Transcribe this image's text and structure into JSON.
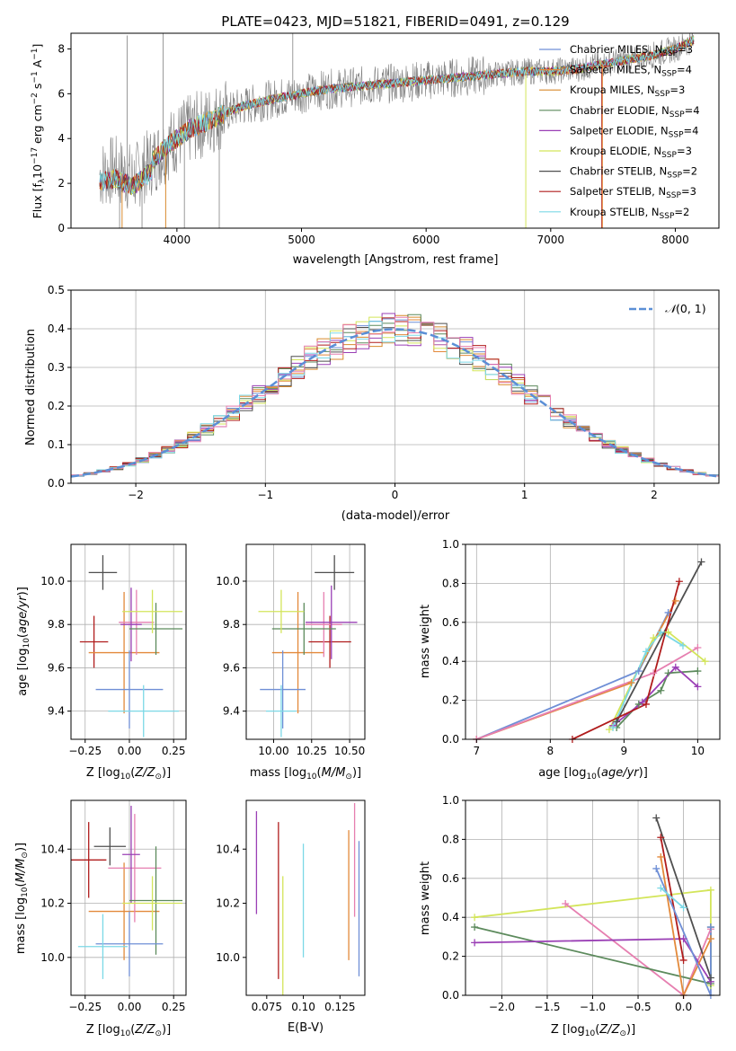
{
  "figure": {
    "title": "PLATE=0423, MJD=51821, FIBERID=0491, z=0.129"
  },
  "colors": {
    "chabrier_miles": "#6f8fd6",
    "salpeter_miles": "#e3893a",
    "kroupa_miles": "#d88a2c",
    "chabrier_elodie": "#5c8a5c",
    "salpeter_elodie": "#9a3fb5",
    "kroupa_elodie": "#d3e55a",
    "chabrier_stelib": "#4f4f4f",
    "salpeter_stelib": "#b01c1c",
    "kroupa_stelib": "#7bd8e6",
    "spectrum": "#808080",
    "gaussian": "#5b8fd6",
    "pink": "#e67fb0",
    "grid": "#b0b0b0"
  },
  "chart_data": [
    {
      "id": "spectrum",
      "type": "line",
      "xlabel": "wavelength [Angstrom, rest frame]",
      "ylabel": "Flux [f_λ10^-17 erg cm^-2 s^-1 A^-1]",
      "xlim": [
        3150,
        8350
      ],
      "ylim": [
        0,
        8.7
      ],
      "xticks": [
        4000,
        5000,
        6000,
        7000,
        8000
      ],
      "yticks": [
        0,
        2,
        4,
        6,
        8
      ],
      "grid": false,
      "legend_position": "right",
      "legend": [
        {
          "label": "Chabrier MILES, N_SSP=3",
          "color": "#6f8fd6"
        },
        {
          "label": "Salpeter MILES, N_SSP=4",
          "color": "#e3893a"
        },
        {
          "label": "Kroupa MILES, N_SSP=3",
          "color": "#d88a2c"
        },
        {
          "label": "Chabrier ELODIE, N_SSP=4",
          "color": "#5c8a5c"
        },
        {
          "label": "Salpeter ELODIE, N_SSP=4",
          "color": "#9a3fb5"
        },
        {
          "label": "Kroupa ELODIE, N_SSP=3",
          "color": "#d3e55a"
        },
        {
          "label": "Chabrier STELIB, N_SSP=2",
          "color": "#4f4f4f"
        },
        {
          "label": "Salpeter STELIB, N_SSP=3",
          "color": "#b01c1c"
        },
        {
          "label": "Kroupa STELIB, N_SSP=2",
          "color": "#7bd8e6"
        }
      ],
      "continuum_x": [
        3380,
        3500,
        3650,
        3800,
        3950,
        4100,
        4300,
        4500,
        4800,
        5000,
        5200,
        5400,
        5600,
        5800,
        6000,
        6200,
        6400,
        6600,
        6800,
        7000,
        7200,
        7400,
        7600,
        7800,
        8000,
        8150
      ],
      "continuum_y": [
        2.4,
        2.6,
        2.2,
        3.0,
        3.8,
        4.4,
        4.9,
        5.4,
        5.8,
        6.0,
        6.2,
        6.3,
        6.4,
        6.5,
        6.6,
        6.7,
        6.8,
        6.9,
        7.0,
        7.0,
        7.1,
        7.3,
        7.5,
        7.7,
        8.0,
        8.4
      ]
    },
    {
      "id": "residuals",
      "type": "line",
      "xlabel": "(data-model)/error",
      "ylabel": "Normed distribution",
      "xlim": [
        -2.5,
        2.5
      ],
      "ylim": [
        0,
        0.5
      ],
      "xticks": [
        -2,
        -1,
        0,
        1,
        2
      ],
      "yticks": [
        0.0,
        0.1,
        0.2,
        0.3,
        0.4,
        0.5
      ],
      "grid": true,
      "legend_position": "top-right",
      "legend": [
        {
          "label": "N(0, 1)",
          "color": "#5b8fd6"
        }
      ]
    },
    {
      "id": "age_vs_Z",
      "type": "scatter",
      "xlabel": "Z [log10(Z/Z☉)]",
      "ylabel": "age [log10(age/yr)]",
      "xlim": [
        -0.33,
        0.32
      ],
      "ylim": [
        9.27,
        10.17
      ],
      "xticks": [
        -0.25,
        0.0,
        0.25
      ],
      "yticks": [
        9.4,
        9.6,
        9.8,
        10.0
      ],
      "grid": true,
      "points": [
        {
          "x": -0.15,
          "y": 10.04,
          "xerr": 0.08,
          "yerr": 0.08,
          "color": "#4f4f4f"
        },
        {
          "x": -0.2,
          "y": 9.72,
          "xerr": 0.08,
          "yerr": 0.12,
          "color": "#b01c1c"
        },
        {
          "x": -0.03,
          "y": 9.67,
          "xerr": 0.2,
          "yerr": 0.28,
          "color": "#e3893a"
        },
        {
          "x": 0.04,
          "y": 9.81,
          "xerr": 0.1,
          "yerr": 0.15,
          "color": "#e67fb0"
        },
        {
          "x": 0.01,
          "y": 9.8,
          "xerr": 0.06,
          "yerr": 0.17,
          "color": "#9a3fb5"
        },
        {
          "x": 0.15,
          "y": 9.78,
          "xerr": 0.15,
          "yerr": 0.12,
          "color": "#5c8a5c"
        },
        {
          "x": 0.13,
          "y": 9.86,
          "xerr": 0.17,
          "yerr": 0.1,
          "color": "#d3e55a"
        },
        {
          "x": 0.0,
          "y": 9.5,
          "xerr": 0.19,
          "yerr": 0.18,
          "color": "#6f8fd6"
        },
        {
          "x": 0.08,
          "y": 9.4,
          "xerr": 0.2,
          "yerr": 0.12,
          "color": "#7bd8e6"
        }
      ]
    },
    {
      "id": "age_vs_mass",
      "type": "scatter",
      "xlabel": "mass [log10(M/M☉)]",
      "ylabel": "",
      "xlim": [
        9.82,
        10.6
      ],
      "ylim": [
        9.27,
        10.17
      ],
      "xticks": [
        10.0,
        10.25,
        10.5
      ],
      "yticks": [
        9.4,
        9.6,
        9.8,
        10.0
      ],
      "grid": true,
      "points": [
        {
          "x": 10.4,
          "y": 10.04,
          "xerr": 0.13,
          "yerr": 0.08,
          "color": "#4f4f4f"
        },
        {
          "x": 10.37,
          "y": 9.72,
          "xerr": 0.14,
          "yerr": 0.12,
          "color": "#b01c1c"
        },
        {
          "x": 10.16,
          "y": 9.67,
          "xerr": 0.17,
          "yerr": 0.28,
          "color": "#e3893a"
        },
        {
          "x": 10.33,
          "y": 9.8,
          "xerr": 0.12,
          "yerr": 0.15,
          "color": "#e67fb0"
        },
        {
          "x": 10.38,
          "y": 9.81,
          "xerr": 0.17,
          "yerr": 0.17,
          "color": "#9a3fb5"
        },
        {
          "x": 10.2,
          "y": 9.78,
          "xerr": 0.21,
          "yerr": 0.12,
          "color": "#5c8a5c"
        },
        {
          "x": 10.05,
          "y": 9.86,
          "xerr": 0.15,
          "yerr": 0.1,
          "color": "#d3e55a"
        },
        {
          "x": 10.06,
          "y": 9.5,
          "xerr": 0.15,
          "yerr": 0.18,
          "color": "#6f8fd6"
        },
        {
          "x": 10.05,
          "y": 9.4,
          "xerr": 0.1,
          "yerr": 0.12,
          "color": "#7bd8e6"
        }
      ]
    },
    {
      "id": "weight_vs_age",
      "type": "line",
      "xlabel": "age [log10(age/yr)]",
      "ylabel": "mass weight",
      "xlim": [
        6.85,
        10.3
      ],
      "ylim": [
        0,
        1.0
      ],
      "xticks": [
        7,
        8,
        9,
        10
      ],
      "yticks": [
        0.0,
        0.2,
        0.4,
        0.6,
        0.8,
        1.0
      ],
      "grid": true,
      "series": [
        {
          "color": "#6f8fd6",
          "x": [
            7.0,
            9.2,
            9.6
          ],
          "y": [
            0.0,
            0.35,
            0.65
          ]
        },
        {
          "color": "#e3893a",
          "x": [
            7.0,
            9.1,
            9.7
          ],
          "y": [
            0.0,
            0.29,
            0.71
          ]
        },
        {
          "color": "#e67fb0",
          "x": [
            7.0,
            9.4,
            10.0
          ],
          "y": [
            0.0,
            0.34,
            0.47
          ]
        },
        {
          "color": "#5c8a5c",
          "x": [
            8.9,
            9.2,
            9.5,
            9.6,
            10.0
          ],
          "y": [
            0.06,
            0.18,
            0.25,
            0.34,
            0.35
          ]
        },
        {
          "color": "#9a3fb5",
          "x": [
            8.85,
            9.25,
            9.7,
            10.0
          ],
          "y": [
            0.07,
            0.19,
            0.37,
            0.27
          ]
        },
        {
          "color": "#d3e55a",
          "x": [
            8.8,
            9.4,
            9.6,
            10.1
          ],
          "y": [
            0.05,
            0.52,
            0.55,
            0.4
          ]
        },
        {
          "color": "#7bd8e6",
          "x": [
            8.85,
            9.3,
            9.5,
            9.8
          ],
          "y": [
            0.06,
            0.45,
            0.55,
            0.48
          ]
        },
        {
          "color": "#4f4f4f",
          "x": [
            8.9,
            10.05
          ],
          "y": [
            0.09,
            0.91
          ]
        },
        {
          "color": "#b01c1c",
          "x": [
            8.3,
            9.3,
            9.75
          ],
          "y": [
            0.0,
            0.18,
            0.81
          ]
        }
      ]
    },
    {
      "id": "mass_vs_Z",
      "type": "scatter",
      "xlabel": "Z [log10(Z/Z☉)]",
      "ylabel": "mass [log10(M/M☉)]",
      "xlim": [
        -0.33,
        0.32
      ],
      "ylim": [
        9.86,
        10.58
      ],
      "xticks": [
        -0.25,
        0.0,
        0.25
      ],
      "yticks": [
        10.0,
        10.2,
        10.4
      ],
      "grid": true,
      "points": [
        {
          "x": -0.11,
          "y": 10.41,
          "xerr": 0.09,
          "yerr": 0.07,
          "color": "#4f4f4f"
        },
        {
          "x": -0.23,
          "y": 10.36,
          "xerr": 0.1,
          "yerr": 0.14,
          "color": "#b01c1c"
        },
        {
          "x": -0.03,
          "y": 10.17,
          "xerr": 0.2,
          "yerr": 0.18,
          "color": "#e3893a"
        },
        {
          "x": 0.03,
          "y": 10.33,
          "xerr": 0.15,
          "yerr": 0.2,
          "color": "#e67fb0"
        },
        {
          "x": 0.01,
          "y": 10.38,
          "xerr": 0.05,
          "yerr": 0.18,
          "color": "#9a3fb5"
        },
        {
          "x": 0.15,
          "y": 10.21,
          "xerr": 0.15,
          "yerr": 0.2,
          "color": "#5c8a5c"
        },
        {
          "x": 0.13,
          "y": 10.2,
          "xerr": 0.17,
          "yerr": 0.1,
          "color": "#d3e55a"
        },
        {
          "x": 0.0,
          "y": 10.05,
          "xerr": 0.19,
          "yerr": 0.12,
          "color": "#6f8fd6"
        },
        {
          "x": -0.15,
          "y": 10.04,
          "xerr": 0.14,
          "yerr": 0.12,
          "color": "#7bd8e6"
        }
      ]
    },
    {
      "id": "mass_vs_EBV",
      "type": "scatter",
      "xlabel": "E(B-V)",
      "ylabel": "",
      "xlim": [
        0.061,
        0.142
      ],
      "ylim": [
        9.86,
        10.58
      ],
      "xticks": [
        0.075,
        0.1,
        0.125
      ],
      "yticks": [
        10.0,
        10.2,
        10.4
      ],
      "grid": false,
      "points": [
        {
          "x": 0.068,
          "y": 10.35,
          "yerr": 0.19,
          "color": "#9a3fb5"
        },
        {
          "x": 0.083,
          "y": 10.21,
          "yerr": 0.29,
          "color": "#b01c1c"
        },
        {
          "x": 0.086,
          "y": 10.06,
          "yerr": 0.24,
          "color": "#d3e55a"
        },
        {
          "x": 0.1,
          "y": 10.21,
          "yerr": 0.21,
          "color": "#7bd8e6"
        },
        {
          "x": 0.131,
          "y": 10.23,
          "yerr": 0.24,
          "color": "#e3893a"
        },
        {
          "x": 0.135,
          "y": 10.36,
          "yerr": 0.21,
          "color": "#e67fb0"
        },
        {
          "x": 0.138,
          "y": 10.18,
          "yerr": 0.25,
          "color": "#6f8fd6"
        }
      ]
    },
    {
      "id": "weight_vs_Z",
      "type": "line",
      "xlabel": "Z [log10(Z/Z☉)]",
      "ylabel": "mass weight",
      "xlim": [
        -2.4,
        0.4
      ],
      "ylim": [
        0,
        1.0
      ],
      "xticks": [
        -2.0,
        -1.5,
        -1.0,
        -0.5,
        0.0
      ],
      "yticks": [
        0.0,
        0.2,
        0.4,
        0.6,
        0.8,
        1.0
      ],
      "grid": true,
      "series": [
        {
          "color": "#d3e55a",
          "x": [
            -2.3,
            0.3,
            0.3
          ],
          "y": [
            0.4,
            0.54,
            0.05
          ]
        },
        {
          "color": "#e67fb0",
          "x": [
            -1.3,
            0.0,
            0.3
          ],
          "y": [
            0.47,
            0.0,
            0.34
          ]
        },
        {
          "color": "#5c8a5c",
          "x": [
            -2.3,
            0.3,
            0.3
          ],
          "y": [
            0.35,
            0.06,
            0.35
          ]
        },
        {
          "color": "#9a3fb5",
          "x": [
            -2.3,
            0.0,
            0.3
          ],
          "y": [
            0.27,
            0.29,
            0.07
          ]
        },
        {
          "color": "#4f4f4f",
          "x": [
            -0.3,
            0.3
          ],
          "y": [
            0.91,
            0.09
          ]
        },
        {
          "color": "#b01c1c",
          "x": [
            -0.25,
            0.0
          ],
          "y": [
            0.81,
            0.18
          ]
        },
        {
          "color": "#e3893a",
          "x": [
            -0.25,
            0.0,
            0.3
          ],
          "y": [
            0.71,
            0.0,
            0.29
          ]
        },
        {
          "color": "#6f8fd6",
          "x": [
            -0.3,
            0.3,
            0.3
          ],
          "y": [
            0.65,
            0.0,
            0.35
          ]
        },
        {
          "color": "#7bd8e6",
          "x": [
            -0.25,
            0.0
          ],
          "y": [
            0.55,
            0.45
          ]
        }
      ]
    }
  ]
}
